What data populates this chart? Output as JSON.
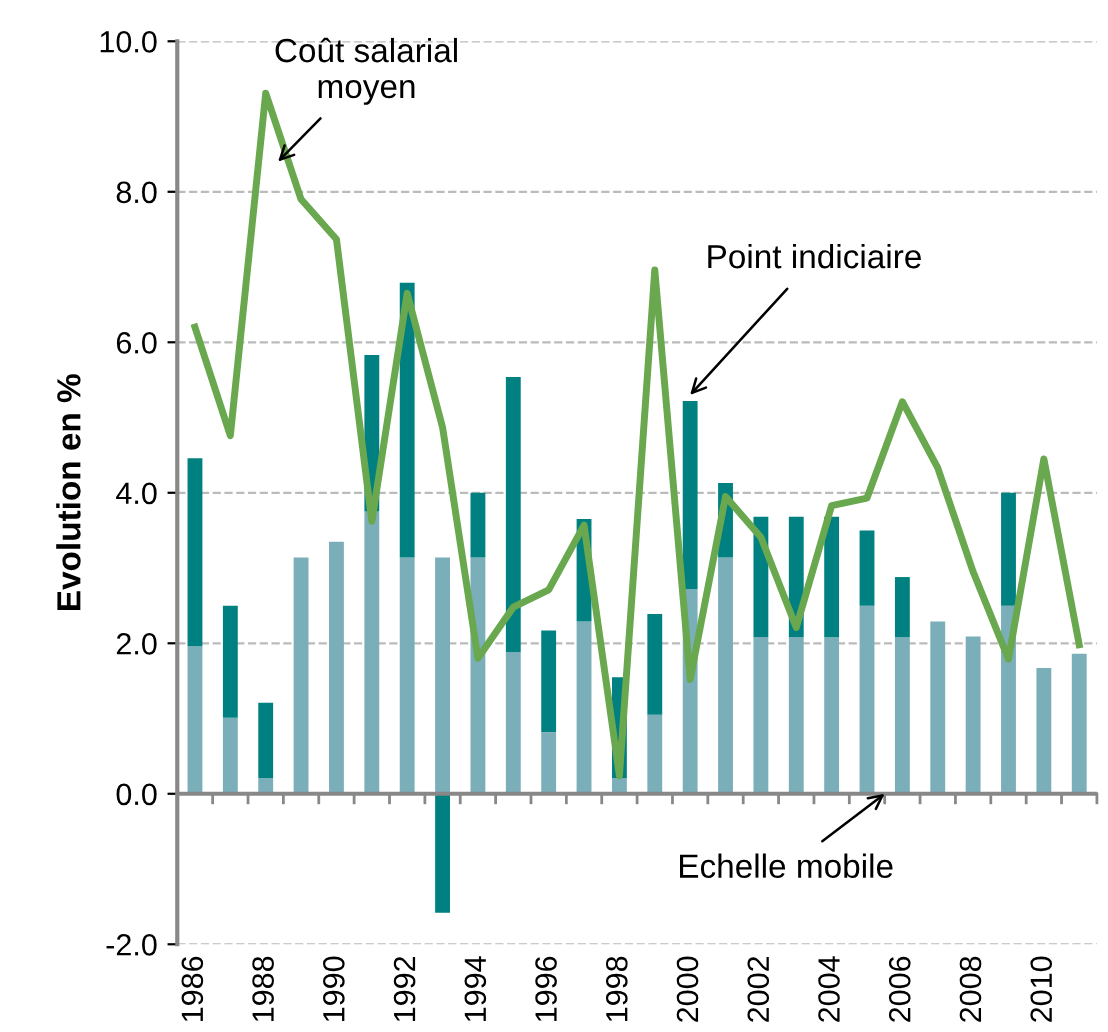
{
  "chart_data": {
    "type": "bar",
    "stacked": true,
    "ylabel": "Evolution en %",
    "categories": [
      "1986",
      null,
      "1988",
      null,
      "1990",
      null,
      "1992",
      null,
      "1994",
      null,
      "1996",
      null,
      "1998",
      null,
      "2000",
      null,
      "2002",
      null,
      "2004",
      null,
      "2006",
      null,
      "2008",
      null,
      "2010",
      null
    ],
    "series": [
      {
        "color": "#7aaeb8",
        "values": [
          1.96,
          1.01,
          0.21,
          3.14,
          3.35,
          3.75,
          3.14,
          3.14,
          3.14,
          1.88,
          0.82,
          2.29,
          0.21,
          1.05,
          2.72,
          3.14,
          2.08,
          2.08,
          2.08,
          2.5,
          2.08,
          2.29,
          2.09,
          2.5,
          1.67,
          1.86
        ]
      },
      {
        "color": "#008080",
        "values": [
          2.5,
          1.49,
          1.0,
          null,
          null,
          2.08,
          3.65,
          -1.58,
          0.86,
          3.66,
          1.35,
          1.36,
          1.34,
          1.34,
          2.5,
          0.99,
          1.6,
          1.6,
          1.6,
          1.0,
          0.8,
          null,
          null,
          1.5,
          null,
          null
        ]
      },
      {
        "type": "line",
        "color": "#6aa84f",
        "values": [
          6.2,
          4.76,
          9.31,
          7.9,
          7.37,
          3.62,
          6.65,
          4.87,
          1.8,
          2.48,
          2.71,
          3.57,
          0.24,
          6.96,
          1.52,
          3.95,
          3.41,
          2.21,
          3.83,
          3.93,
          5.21,
          4.33,
          2.95,
          1.79,
          4.45,
          1.98
        ]
      }
    ],
    "ylim": [
      -2,
      10
    ],
    "yticks": [
      {
        "value": -2,
        "label": "-2.0"
      },
      {
        "value": 0,
        "label": "0.0"
      },
      {
        "value": 2,
        "label": "2.0"
      },
      {
        "value": 4,
        "label": "4.0"
      },
      {
        "value": 6,
        "label": "6.0"
      },
      {
        "value": 8,
        "label": "8.0"
      },
      {
        "value": 10,
        "label": "10.0"
      }
    ],
    "grid": "y",
    "legend": false,
    "annotations": [
      {
        "text": "Coût salarial\nmoyen",
        "x": "1988",
        "y": 8.4
      },
      {
        "text": "Point indiciaire",
        "x": "2000",
        "y": 5.3
      },
      {
        "text": "Echelle mobile",
        "y": 0
      }
    ]
  }
}
